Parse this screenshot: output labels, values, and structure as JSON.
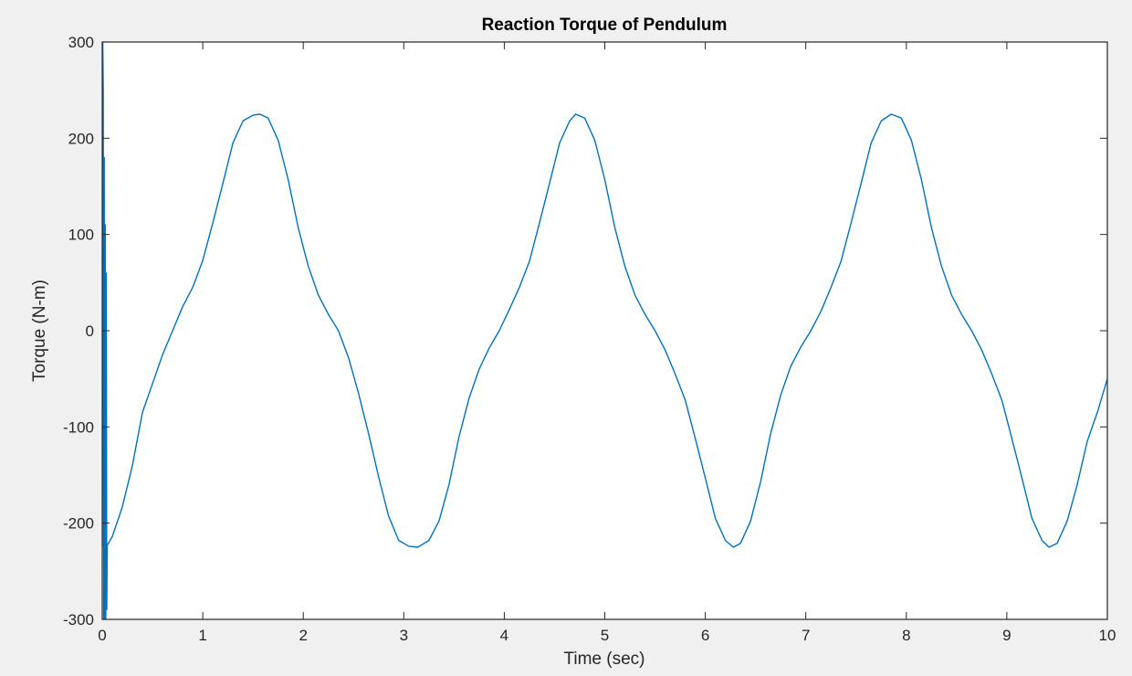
{
  "chart_data": {
    "type": "line",
    "title": "Reaction Torque of Pendulum",
    "xlabel": "Time (sec)",
    "ylabel": "Torque (N-m)",
    "xlim": [
      0,
      10
    ],
    "ylim": [
      -300,
      300
    ],
    "grid": false,
    "legend": null,
    "x_ticks": [
      0,
      1,
      2,
      3,
      4,
      5,
      6,
      7,
      8,
      9,
      10
    ],
    "x_tick_labels": [
      "0",
      "1",
      "2",
      "3",
      "4",
      "5",
      "6",
      "7",
      "8",
      "9",
      "10"
    ],
    "y_ticks": [
      -300,
      -200,
      -100,
      0,
      100,
      200,
      300
    ],
    "y_tick_labels": [
      "-300",
      "-200",
      "-100",
      "0",
      "100",
      "200",
      "300"
    ],
    "series": [
      {
        "color": "#0072bd",
        "x": [
          0,
          0.005,
          0.01,
          0.015,
          0.02,
          0.025,
          0.03,
          0.035,
          0.04,
          0.045,
          0.05,
          0.1,
          0.2,
          0.3,
          0.4,
          0.5,
          0.6,
          0.7,
          0.8,
          0.9,
          1.0,
          1.1,
          1.2,
          1.3,
          1.4,
          1.5,
          1.57,
          1.65,
          1.75,
          1.85,
          1.95,
          2.05,
          2.15,
          2.25,
          2.35,
          2.45,
          2.55,
          2.65,
          2.75,
          2.85,
          2.95,
          3.05,
          3.14,
          3.25,
          3.35,
          3.45,
          3.55,
          3.65,
          3.75,
          3.85,
          3.95,
          4.05,
          4.15,
          4.25,
          4.35,
          4.45,
          4.55,
          4.65,
          4.71,
          4.8,
          4.9,
          5.0,
          5.1,
          5.2,
          5.3,
          5.4,
          5.5,
          5.6,
          5.7,
          5.8,
          5.9,
          6.0,
          6.1,
          6.2,
          6.28,
          6.35,
          6.45,
          6.55,
          6.65,
          6.75,
          6.85,
          6.95,
          7.05,
          7.15,
          7.25,
          7.35,
          7.45,
          7.55,
          7.65,
          7.75,
          7.85,
          7.95,
          8.05,
          8.15,
          8.25,
          8.35,
          8.45,
          8.55,
          8.65,
          8.75,
          8.85,
          8.95,
          9.05,
          9.15,
          9.25,
          9.35,
          9.42,
          9.5,
          9.6,
          9.7,
          9.8,
          9.9,
          10.0
        ],
        "y": [
          -225,
          300,
          250,
          -300,
          180,
          -300,
          110,
          -300,
          60,
          -290,
          -223,
          -214,
          -183,
          -140,
          -85,
          -55,
          -25,
          0,
          25,
          45,
          73,
          112,
          153,
          195,
          218,
          224,
          225,
          221,
          198,
          157,
          107,
          67,
          37,
          17,
          0,
          -28,
          -65,
          -107,
          -152,
          -193,
          -218,
          -224,
          -225,
          -218,
          -198,
          -160,
          -110,
          -70,
          -40,
          -18,
          0,
          22,
          45,
          72,
          112,
          153,
          195,
          218,
          225,
          221,
          198,
          157,
          107,
          67,
          37,
          17,
          0,
          -20,
          -45,
          -72,
          -112,
          -153,
          -195,
          -218,
          -225,
          -221,
          -198,
          -157,
          -107,
          -67,
          -37,
          -17,
          0,
          20,
          45,
          72,
          112,
          153,
          195,
          218,
          225,
          221,
          198,
          157,
          107,
          67,
          37,
          17,
          0,
          -20,
          -45,
          -72,
          -112,
          -153,
          -195,
          -218,
          -225,
          -221,
          -198,
          -160,
          -115,
          -85,
          -50
        ]
      }
    ]
  }
}
